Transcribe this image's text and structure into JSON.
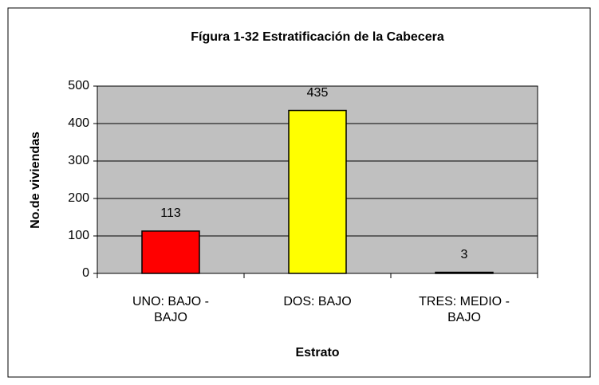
{
  "chart_data": {
    "type": "bar",
    "title": "Fígura 1-32 Estratificación de la Cabecera",
    "xlabel": "Estrato",
    "ylabel": "No.de viviendas",
    "categories": [
      "UNO: BAJO - BAJO",
      "DOS: BAJO",
      "TRES: MEDIO - BAJO"
    ],
    "values": [
      113,
      435,
      3
    ],
    "colors": [
      "#ff0000",
      "#ffff00",
      "#000080"
    ],
    "ylim": [
      0,
      500
    ],
    "yticks": [
      0,
      100,
      200,
      300,
      400,
      500
    ],
    "grid": true
  }
}
